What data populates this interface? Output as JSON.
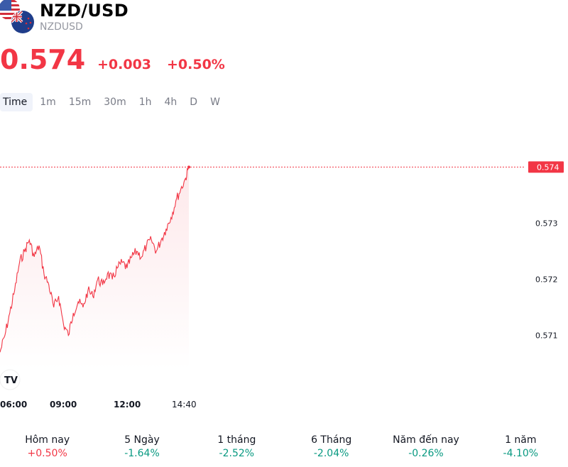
{
  "header": {
    "title": "NZD/USD",
    "symbol": "NZDUSD"
  },
  "quote": {
    "price": "0.574",
    "change": "+0.003",
    "change_percent": "+0.50%"
  },
  "timeframes": [
    "Time",
    "1m",
    "15m",
    "30m",
    "1h",
    "4h",
    "D",
    "W"
  ],
  "active_timeframe": "Time",
  "chart_data": {
    "type": "area",
    "y_ticks": [
      "0.574",
      "0.573",
      "0.572",
      "0.571"
    ],
    "x_ticks": [
      "06:00",
      "09:00",
      "12:00",
      "14:40"
    ],
    "last_price_label": "0.574",
    "ylim": [
      0.5704,
      0.5747
    ],
    "series": [
      {
        "x": [
          "05:00",
          "05:15",
          "05:30",
          "05:45",
          "06:00",
          "06:15",
          "06:30",
          "06:45",
          "07:00",
          "07:15",
          "07:30",
          "07:45",
          "08:00",
          "08:15",
          "08:30",
          "08:45",
          "09:00",
          "09:15",
          "09:30",
          "09:45",
          "10:00",
          "10:15",
          "10:30",
          "10:45",
          "11:00",
          "11:15",
          "11:30",
          "11:45",
          "12:00",
          "12:15",
          "12:30",
          "12:45",
          "13:00",
          "13:15",
          "13:30",
          "13:45",
          "14:00",
          "14:15",
          "14:30",
          "14:40"
        ],
        "values": [
          0.5707,
          0.571,
          0.5714,
          0.5718,
          0.5723,
          0.5725,
          0.5727,
          0.5724,
          0.5726,
          0.5721,
          0.5719,
          0.5715,
          0.5717,
          0.5712,
          0.571,
          0.5714,
          0.5716,
          0.5715,
          0.5718,
          0.5717,
          0.572,
          0.5719,
          0.5721,
          0.572,
          0.5722,
          0.5723,
          0.5722,
          0.5724,
          0.5725,
          0.5724,
          0.5726,
          0.5727,
          0.5725,
          0.5727,
          0.5729,
          0.5731,
          0.5734,
          0.5736,
          0.5738,
          0.574
        ]
      }
    ],
    "colors": {
      "line": "#f23645",
      "fill_top": "#fde8ea",
      "fill_bottom": "#ffffff"
    }
  },
  "watermark": "TV",
  "performance": [
    {
      "label": "Hôm nay",
      "value": "+0.50%",
      "direction": "up"
    },
    {
      "label": "5 Ngày",
      "value": "-1.64%",
      "direction": "down"
    },
    {
      "label": "1 tháng",
      "value": "-2.52%",
      "direction": "down"
    },
    {
      "label": "6 Tháng",
      "value": "-2.04%",
      "direction": "down"
    },
    {
      "label": "Năm đến nay",
      "value": "-0.26%",
      "direction": "down"
    },
    {
      "label": "1 năm",
      "value": "-4.10%",
      "direction": "down"
    }
  ]
}
